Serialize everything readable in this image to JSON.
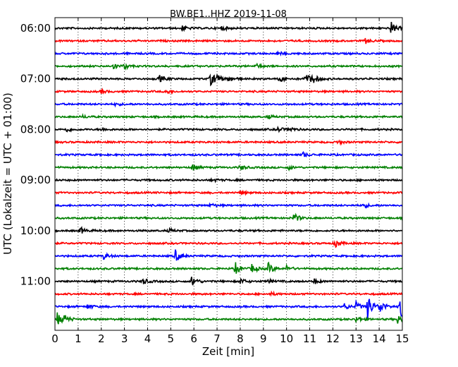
{
  "chart_data": {
    "type": "line",
    "title": "BW.BE1..HHZ 2019-11-08",
    "xlabel": "Zeit  [min]",
    "ylabel": "UTC (Lokalzeit = UTC + 01:00)",
    "xlim": [
      0,
      15
    ],
    "x_ticks": [
      0,
      1,
      2,
      3,
      4,
      5,
      6,
      7,
      8,
      9,
      10,
      11,
      12,
      13,
      14,
      15
    ],
    "y_tick_labels": [
      "06:00",
      "07:00",
      "08:00",
      "09:00",
      "10:00",
      "11:00"
    ],
    "grid": "vertical dotted",
    "colors": [
      "#000000",
      "#ff0000",
      "#0000ff",
      "#008000"
    ],
    "trace_start_times": [
      "06:00",
      "06:15",
      "06:30",
      "06:45",
      "07:00",
      "07:15",
      "07:30",
      "07:45",
      "08:00",
      "08:15",
      "08:30",
      "08:45",
      "09:00",
      "09:15",
      "09:30",
      "09:45",
      "10:00",
      "10:15",
      "10:30",
      "10:45",
      "11:00",
      "11:15",
      "11:30",
      "11:45"
    ],
    "events": [
      [
        [
          5.5,
          0.4
        ],
        [
          14.5,
          1.0
        ],
        [
          7.2,
          0.3
        ]
      ],
      [
        [
          13.4,
          0.4
        ]
      ],
      [
        [
          9.6,
          0.25
        ]
      ],
      [
        [
          2.5,
          0.5
        ],
        [
          3.0,
          0.4
        ],
        [
          8.7,
          0.3
        ]
      ],
      [
        [
          4.5,
          0.55
        ],
        [
          6.7,
          1.0
        ],
        [
          6.9,
          0.8
        ],
        [
          7.5,
          0.5
        ],
        [
          9.7,
          0.5
        ],
        [
          10.8,
          0.9
        ],
        [
          11.1,
          0.8
        ]
      ],
      [
        [
          2.0,
          0.3
        ],
        [
          4.8,
          0.35
        ]
      ],
      [
        [
          2.6,
          0.2
        ]
      ],
      [
        [
          1.2,
          0.2
        ],
        [
          9.2,
          0.25
        ]
      ],
      [
        [
          0.5,
          0.35
        ],
        [
          2.0,
          0.3
        ],
        [
          9.6,
          0.4
        ],
        [
          10.1,
          0.4
        ]
      ],
      [
        [
          12.2,
          0.3
        ]
      ],
      [
        [
          10.7,
          0.4
        ]
      ],
      [
        [
          5.9,
          0.6
        ],
        [
          8.0,
          0.45
        ],
        [
          10.1,
          0.3
        ]
      ],
      [
        [
          6.8,
          0.25
        ]
      ],
      [
        [
          8.0,
          0.3
        ]
      ],
      [
        [
          6.7,
          0.3
        ],
        [
          13.3,
          0.4
        ]
      ],
      [
        [
          10.3,
          0.8
        ]
      ],
      [
        [
          1.1,
          0.5
        ],
        [
          4.9,
          0.3
        ]
      ],
      [
        [
          12.1,
          0.7
        ]
      ],
      [
        [
          2.1,
          0.5
        ],
        [
          5.2,
          1.0
        ]
      ],
      [
        [
          7.8,
          0.9
        ],
        [
          8.5,
          0.7
        ],
        [
          9.2,
          0.9
        ],
        [
          10.0,
          0.4
        ]
      ],
      [
        [
          3.8,
          0.5
        ],
        [
          5.9,
          0.9
        ],
        [
          8.0,
          0.5
        ],
        [
          11.2,
          0.4
        ],
        [
          9.2,
          0.3
        ]
      ],
      [
        [
          9.3,
          0.25
        ]
      ],
      [
        [
          1.4,
          0.4
        ],
        [
          12.5,
          0.5
        ],
        [
          13.0,
          0.7
        ],
        [
          13.5,
          2.0
        ],
        [
          14.0,
          1.2
        ],
        [
          14.9,
          2.5
        ]
      ],
      [
        [
          0.1,
          1.0
        ],
        [
          0.4,
          0.6
        ],
        [
          13.0,
          0.5
        ],
        [
          14.8,
          0.7
        ]
      ]
    ]
  }
}
